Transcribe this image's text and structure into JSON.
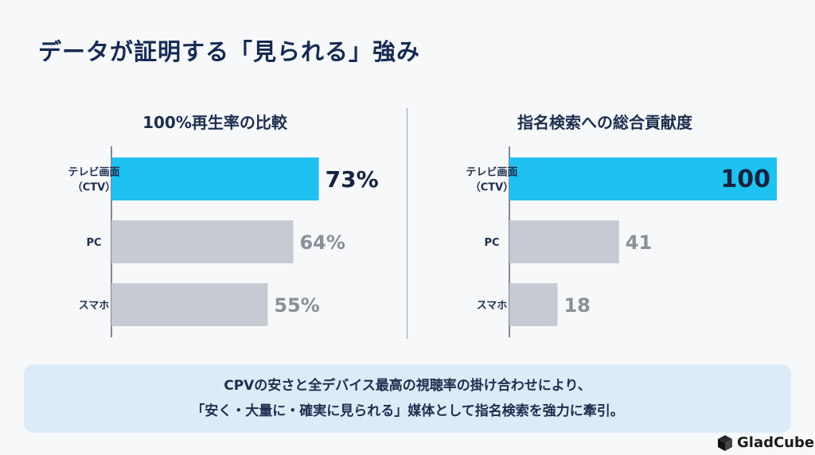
{
  "title": "データが証明する「見られる」強み",
  "chart_data": [
    {
      "type": "bar",
      "orientation": "horizontal",
      "title": "100%再生率の比較",
      "categories": [
        [
          "テレビ画面",
          "（CTV）"
        ],
        [
          "PC"
        ],
        [
          "スマホ"
        ]
      ],
      "values": [
        73,
        64,
        55
      ],
      "value_labels": [
        "73%",
        "64%",
        "55%"
      ],
      "xlim": [
        0,
        100
      ],
      "highlight_index": 0
    },
    {
      "type": "bar",
      "orientation": "horizontal",
      "title": "指名検索への総合貢献度",
      "categories": [
        [
          "テレビ画面",
          "（CTV）"
        ],
        [
          "PC"
        ],
        [
          "スマホ"
        ]
      ],
      "values": [
        100,
        41,
        18
      ],
      "value_labels": [
        "100",
        "41",
        "18"
      ],
      "xlim": [
        0,
        100
      ],
      "highlight_index": 0
    }
  ],
  "colors": {
    "highlight": "#1ec1f0",
    "neutral": "#c7c9d3",
    "highlight_label": "#15233f",
    "neutral_label": "#8a8f99"
  },
  "banner": {
    "line1": "CPVの安さと全デバイス最高の視聴率の掛け合わせにより、",
    "line2": "「安く・大量に・確実に見られる」媒体として指名検索を強力に牽引。"
  },
  "logo": {
    "text": "GladCube",
    "icon": "cube-icon"
  }
}
